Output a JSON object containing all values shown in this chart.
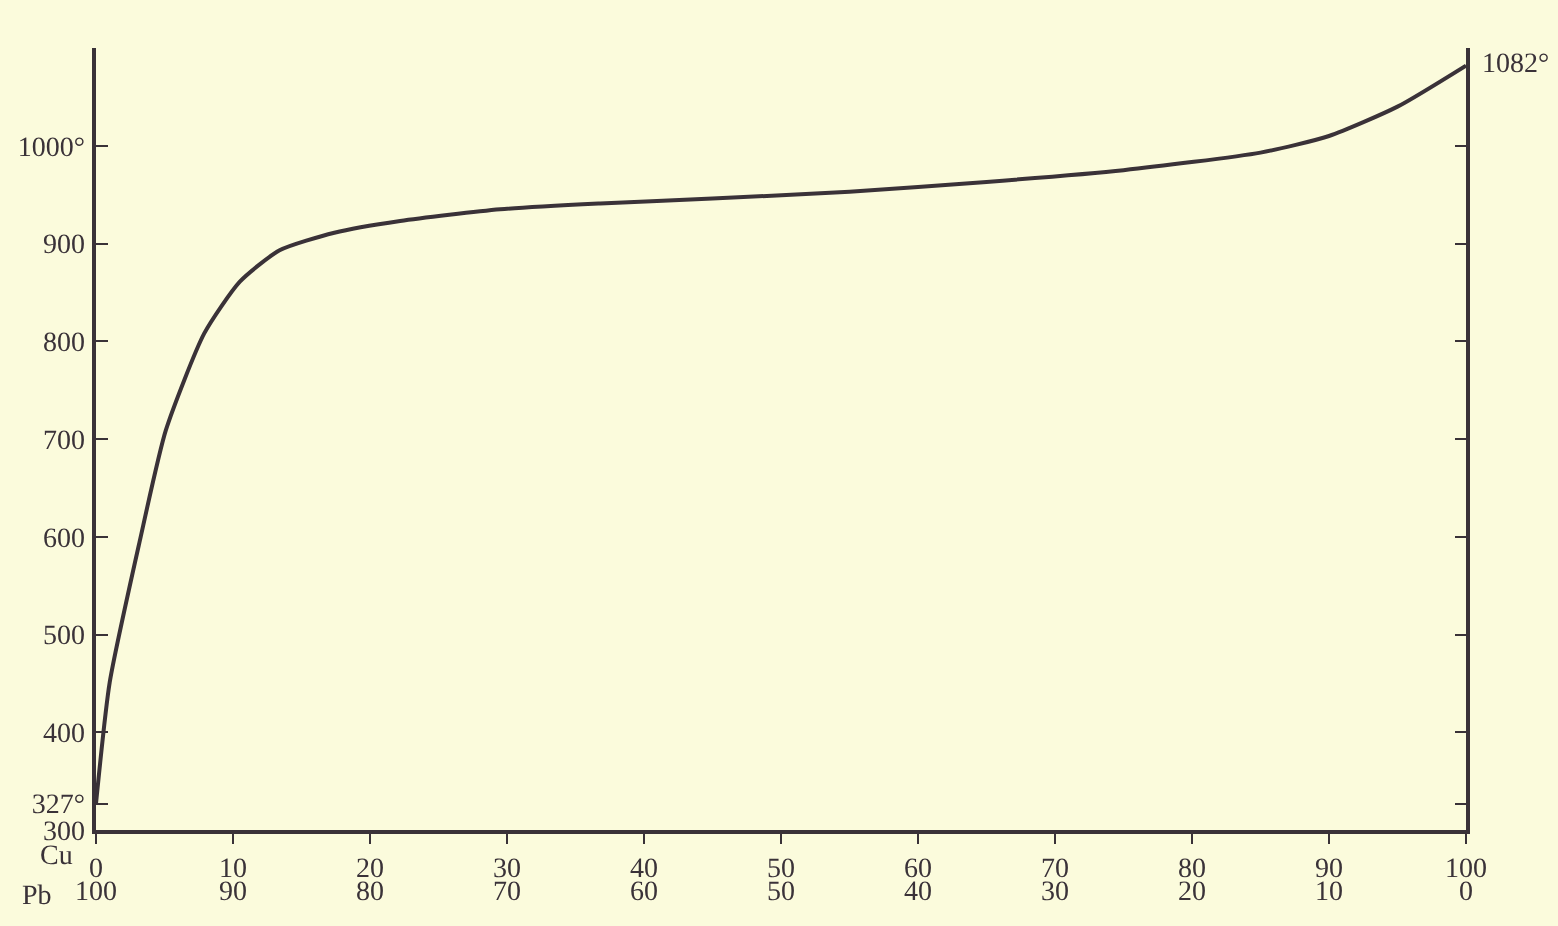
{
  "chart_data": {
    "type": "line",
    "xlabel": "Cu",
    "x2label": "Pb",
    "x": [
      0,
      1,
      3.2,
      5.1,
      7.9,
      10.5,
      13.4,
      17.4,
      22.2,
      29.5,
      36.8,
      45,
      55,
      65,
      75,
      85,
      90,
      95,
      100
    ],
    "series": [
      {
        "color": "#3a3238",
        "values": [
          327,
          451,
          596,
          709,
          808,
          861,
          893,
          911,
          923,
          935,
          941,
          946,
          953,
          963,
          975,
          993,
          1010,
          1040,
          1082
        ]
      }
    ],
    "xlim": [
      0,
      100
    ],
    "xticks": [
      0,
      10,
      20,
      30,
      40,
      50,
      60,
      70,
      80,
      90,
      100
    ],
    "x2lim": [
      100,
      0
    ],
    "x2ticks": [
      100,
      90,
      80,
      70,
      60,
      50,
      40,
      30,
      20,
      10,
      0
    ],
    "ylim": [
      300,
      1100
    ],
    "yticks": [
      300,
      {
        "value": 327,
        "label": "327°"
      },
      400,
      500,
      600,
      700,
      800,
      900,
      {
        "value": 1000,
        "label": "1000°"
      }
    ],
    "annotations": [
      {
        "text": "1082°",
        "x": 100,
        "y": 1082
      }
    ],
    "grid": false,
    "marker": "none",
    "line_style": "solid"
  }
}
